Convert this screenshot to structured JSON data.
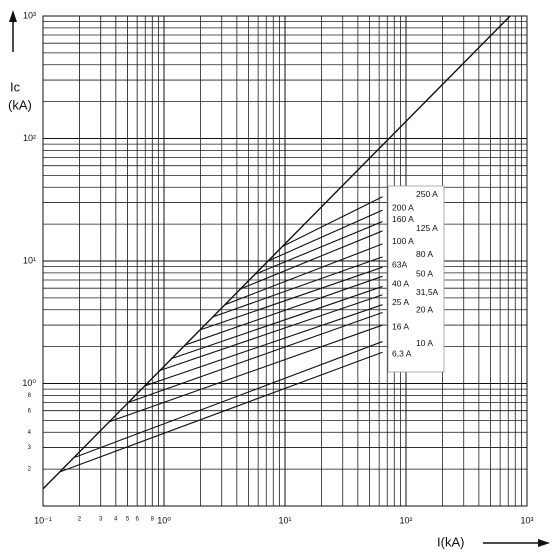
{
  "chart_data": {
    "type": "line",
    "log_x": true,
    "log_y": true,
    "grid": true,
    "xlim": [
      0.1,
      1000
    ],
    "ylim": [
      0.1,
      1000
    ],
    "xticks": [
      {
        "value": 0.1,
        "label": "10⁻¹"
      },
      {
        "value": 0.2,
        "label": "2"
      },
      {
        "value": 0.3,
        "label": "3"
      },
      {
        "value": 0.4,
        "label": "4"
      },
      {
        "value": 0.5,
        "label": "5"
      },
      {
        "value": 0.6,
        "label": "6"
      },
      {
        "value": 0.8,
        "label": "8"
      },
      {
        "value": 1,
        "label": "10⁰"
      },
      {
        "value": 10,
        "label": "10¹"
      },
      {
        "value": 100,
        "label": "10²"
      },
      {
        "value": 1000,
        "label": "10³"
      }
    ],
    "yticks": [
      {
        "value": 0.2,
        "label": "2"
      },
      {
        "value": 0.3,
        "label": "3"
      },
      {
        "value": 0.4,
        "label": "4"
      },
      {
        "value": 0.6,
        "label": "6"
      },
      {
        "value": 0.8,
        "label": "8"
      },
      {
        "value": 1,
        "label": "10⁰"
      },
      {
        "value": 10,
        "label": "10¹"
      },
      {
        "value": 100,
        "label": "10²"
      },
      {
        "value": 1000,
        "label": "10³"
      }
    ],
    "x_minor_grid": [
      0.7,
      0.9,
      2,
      3,
      4,
      5,
      6,
      7,
      8,
      9,
      20,
      30,
      40,
      50,
      60,
      70,
      80,
      90,
      200,
      300,
      400,
      500,
      600,
      700,
      800,
      900
    ],
    "y_minor_grid": [
      0.5,
      0.7,
      0.9,
      2,
      3,
      4,
      5,
      6,
      7,
      8,
      9,
      20,
      30,
      40,
      50,
      60,
      70,
      80,
      90,
      200,
      300,
      400,
      500,
      600,
      700,
      800,
      900
    ],
    "x_label": "I(kA)",
    "y_label_lines": [
      "Ic",
      "(kA)"
    ],
    "reference_line": {
      "color": "#111111",
      "x": [
        0.1,
        725
      ],
      "values": [
        0.138,
        1000
      ]
    },
    "series": [
      {
        "name": "250 A",
        "color": "#111111",
        "x": [
          9.6,
          64
        ],
        "values": [
          13.2,
          33.5
        ]
      },
      {
        "name": "200 A",
        "color": "#111111",
        "x": [
          7.24,
          64
        ],
        "values": [
          10,
          26
        ]
      },
      {
        "name": "160 A",
        "color": "#111111",
        "x": [
          5.65,
          64
        ],
        "values": [
          7.8,
          21
        ]
      },
      {
        "name": "125 A",
        "color": "#111111",
        "x": [
          4.25,
          64
        ],
        "values": [
          5.9,
          17.6
        ]
      },
      {
        "name": "100 A",
        "color": "#111111",
        "x": [
          3.19,
          64
        ],
        "values": [
          4.4,
          13.8
        ]
      },
      {
        "name": "80 A",
        "color": "#111111",
        "x": [
          2.54,
          64
        ],
        "values": [
          3.5,
          10.8
        ]
      },
      {
        "name": "63A",
        "color": "#111111",
        "x": [
          1.99,
          64
        ],
        "values": [
          2.74,
          8.9
        ]
      },
      {
        "name": "50 A",
        "color": "#111111",
        "x": [
          1.49,
          64
        ],
        "values": [
          2.06,
          7.5
        ]
      },
      {
        "name": "40 A",
        "color": "#111111",
        "x": [
          1.16,
          64
        ],
        "values": [
          1.6,
          6.2
        ]
      },
      {
        "name": "31,5A",
        "color": "#111111",
        "x": [
          0.93,
          64
        ],
        "values": [
          1.28,
          5.3
        ]
      },
      {
        "name": "25 A",
        "color": "#111111",
        "x": [
          0.7,
          64
        ],
        "values": [
          0.96,
          4.4
        ]
      },
      {
        "name": "20 A",
        "color": "#111111",
        "x": [
          0.504,
          64
        ],
        "values": [
          0.7,
          3.8
        ]
      },
      {
        "name": "16 A",
        "color": "#111111",
        "x": [
          0.358,
          64
        ],
        "values": [
          0.49,
          3.0
        ]
      },
      {
        "name": "10 A",
        "color": "#111111",
        "x": [
          0.184,
          64
        ],
        "values": [
          0.25,
          2.2
        ]
      },
      {
        "name": "6,3 A",
        "color": "#111111",
        "x": [
          0.138,
          64
        ],
        "values": [
          0.19,
          1.8
        ]
      }
    ]
  }
}
